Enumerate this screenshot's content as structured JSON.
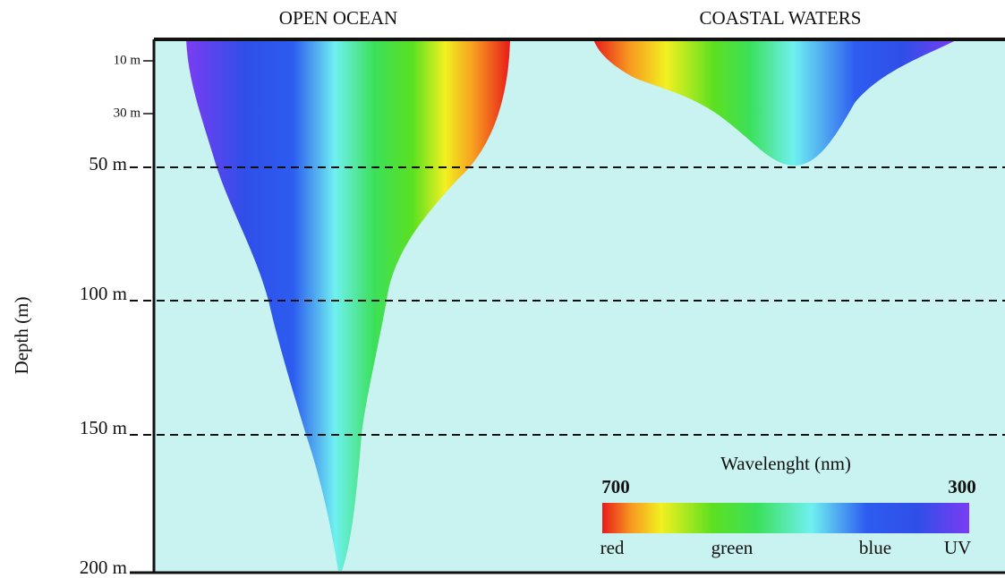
{
  "panels": {
    "left_title": "OPEN OCEAN",
    "right_title": "COASTAL WATERS"
  },
  "y_axis": {
    "label": "Depth (m)",
    "ticks": [
      "10 m",
      "30 m",
      "50 m",
      "100 m",
      "150 m",
      "200 m"
    ]
  },
  "legend": {
    "title": "Wavelenght (nm)",
    "start": "700",
    "end": "300",
    "colors": [
      "red",
      "green",
      "blue",
      "UV"
    ]
  }
}
